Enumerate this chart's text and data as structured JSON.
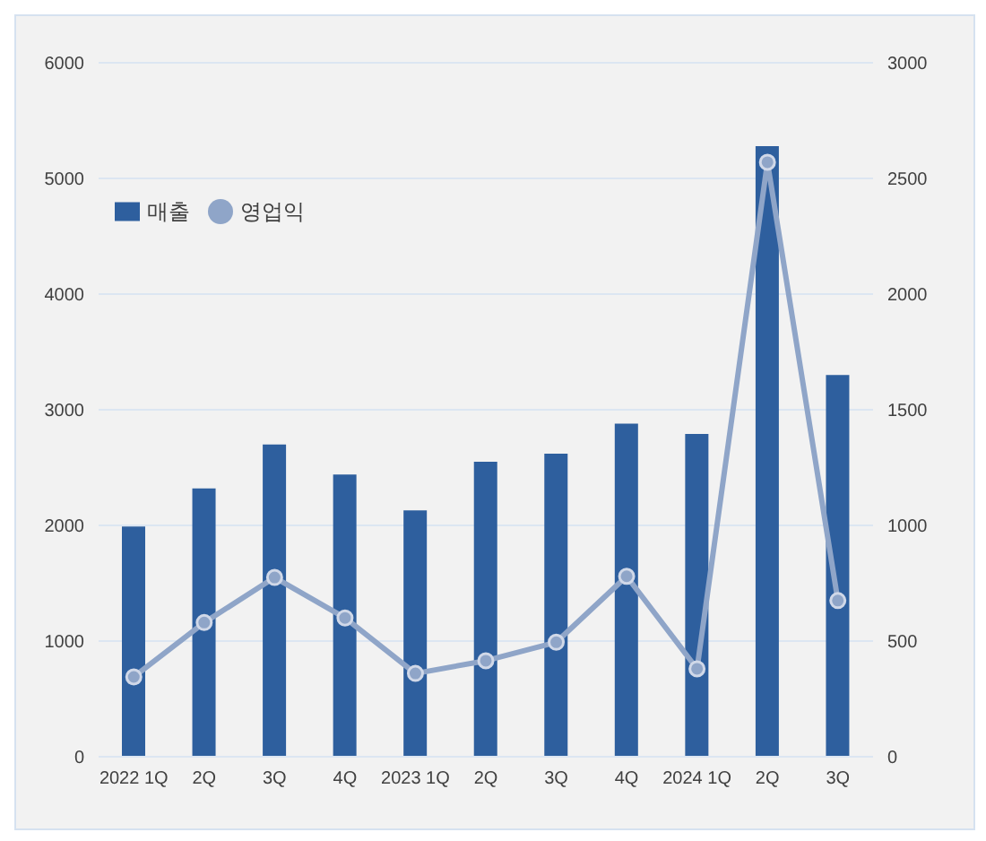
{
  "chart_data": {
    "type": "bar",
    "categories": [
      "2022 1Q",
      "2Q",
      "3Q",
      "4Q",
      "2023 1Q",
      "2Q",
      "3Q",
      "4Q",
      "2024 1Q",
      "2Q",
      "3Q"
    ],
    "series": [
      {
        "name": "매출",
        "color": "#2e5f9e",
        "values": [
          1990,
          2320,
          2700,
          2440,
          2130,
          2550,
          2620,
          2880,
          2790,
          5280,
          3300
        ]
      },
      {
        "name": "영업익",
        "type": "line",
        "axis": "y2",
        "color": "#8fa5c8",
        "values": [
          345,
          580,
          775,
          600,
          360,
          415,
          495,
          780,
          380,
          2570,
          675
        ]
      }
    ],
    "ylim": [
      0,
      6000
    ],
    "yticks": [
      0,
      1000,
      2000,
      3000,
      4000,
      5000,
      6000
    ],
    "y2lim": [
      0,
      3000
    ],
    "y2ticks": [
      0,
      500,
      1000,
      1500,
      2000,
      2500,
      3000
    ],
    "grid": "y",
    "legend": "top left",
    "marker": "circle"
  }
}
